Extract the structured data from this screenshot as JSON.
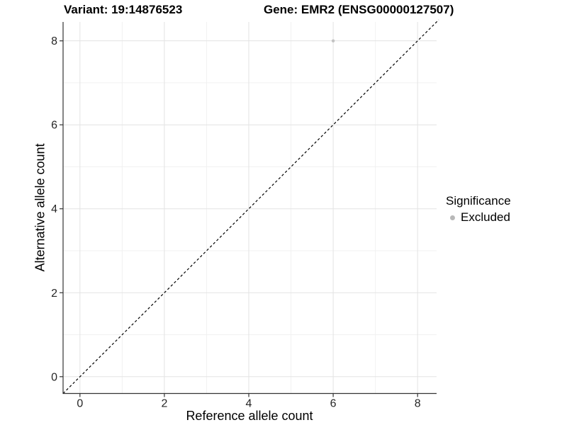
{
  "header": {
    "variant_title": "Variant: 19:14876523",
    "gene_title": "Gene: EMR2 (ENSG00000127507)"
  },
  "chart_data": {
    "type": "scatter",
    "xlabel": "Reference allele count",
    "ylabel": "Alternative allele count",
    "xlim": [
      -0.4,
      8.45
    ],
    "ylim": [
      -0.4,
      8.45
    ],
    "x_ticks": [
      0,
      2,
      4,
      6,
      8
    ],
    "y_ticks": [
      0,
      2,
      4,
      6,
      8
    ],
    "minor_ticks": [
      1,
      3,
      5,
      7
    ],
    "grid": true,
    "points": [
      {
        "x": 6,
        "y": 8,
        "series": "Excluded"
      }
    ],
    "identity_line": {
      "style": "dashed",
      "slope": 1,
      "intercept": 0
    },
    "legend": {
      "title": "Significance",
      "position": "right",
      "items": [
        {
          "label": "Excluded",
          "color": "#b8b8b8"
        }
      ]
    },
    "colors": {
      "point": "#c2c2c2",
      "grid_major": "#e3e3e3",
      "grid_minor": "#f1f1f1",
      "axis": "#333333",
      "identity_line": "#000000",
      "background": "#ffffff"
    }
  }
}
